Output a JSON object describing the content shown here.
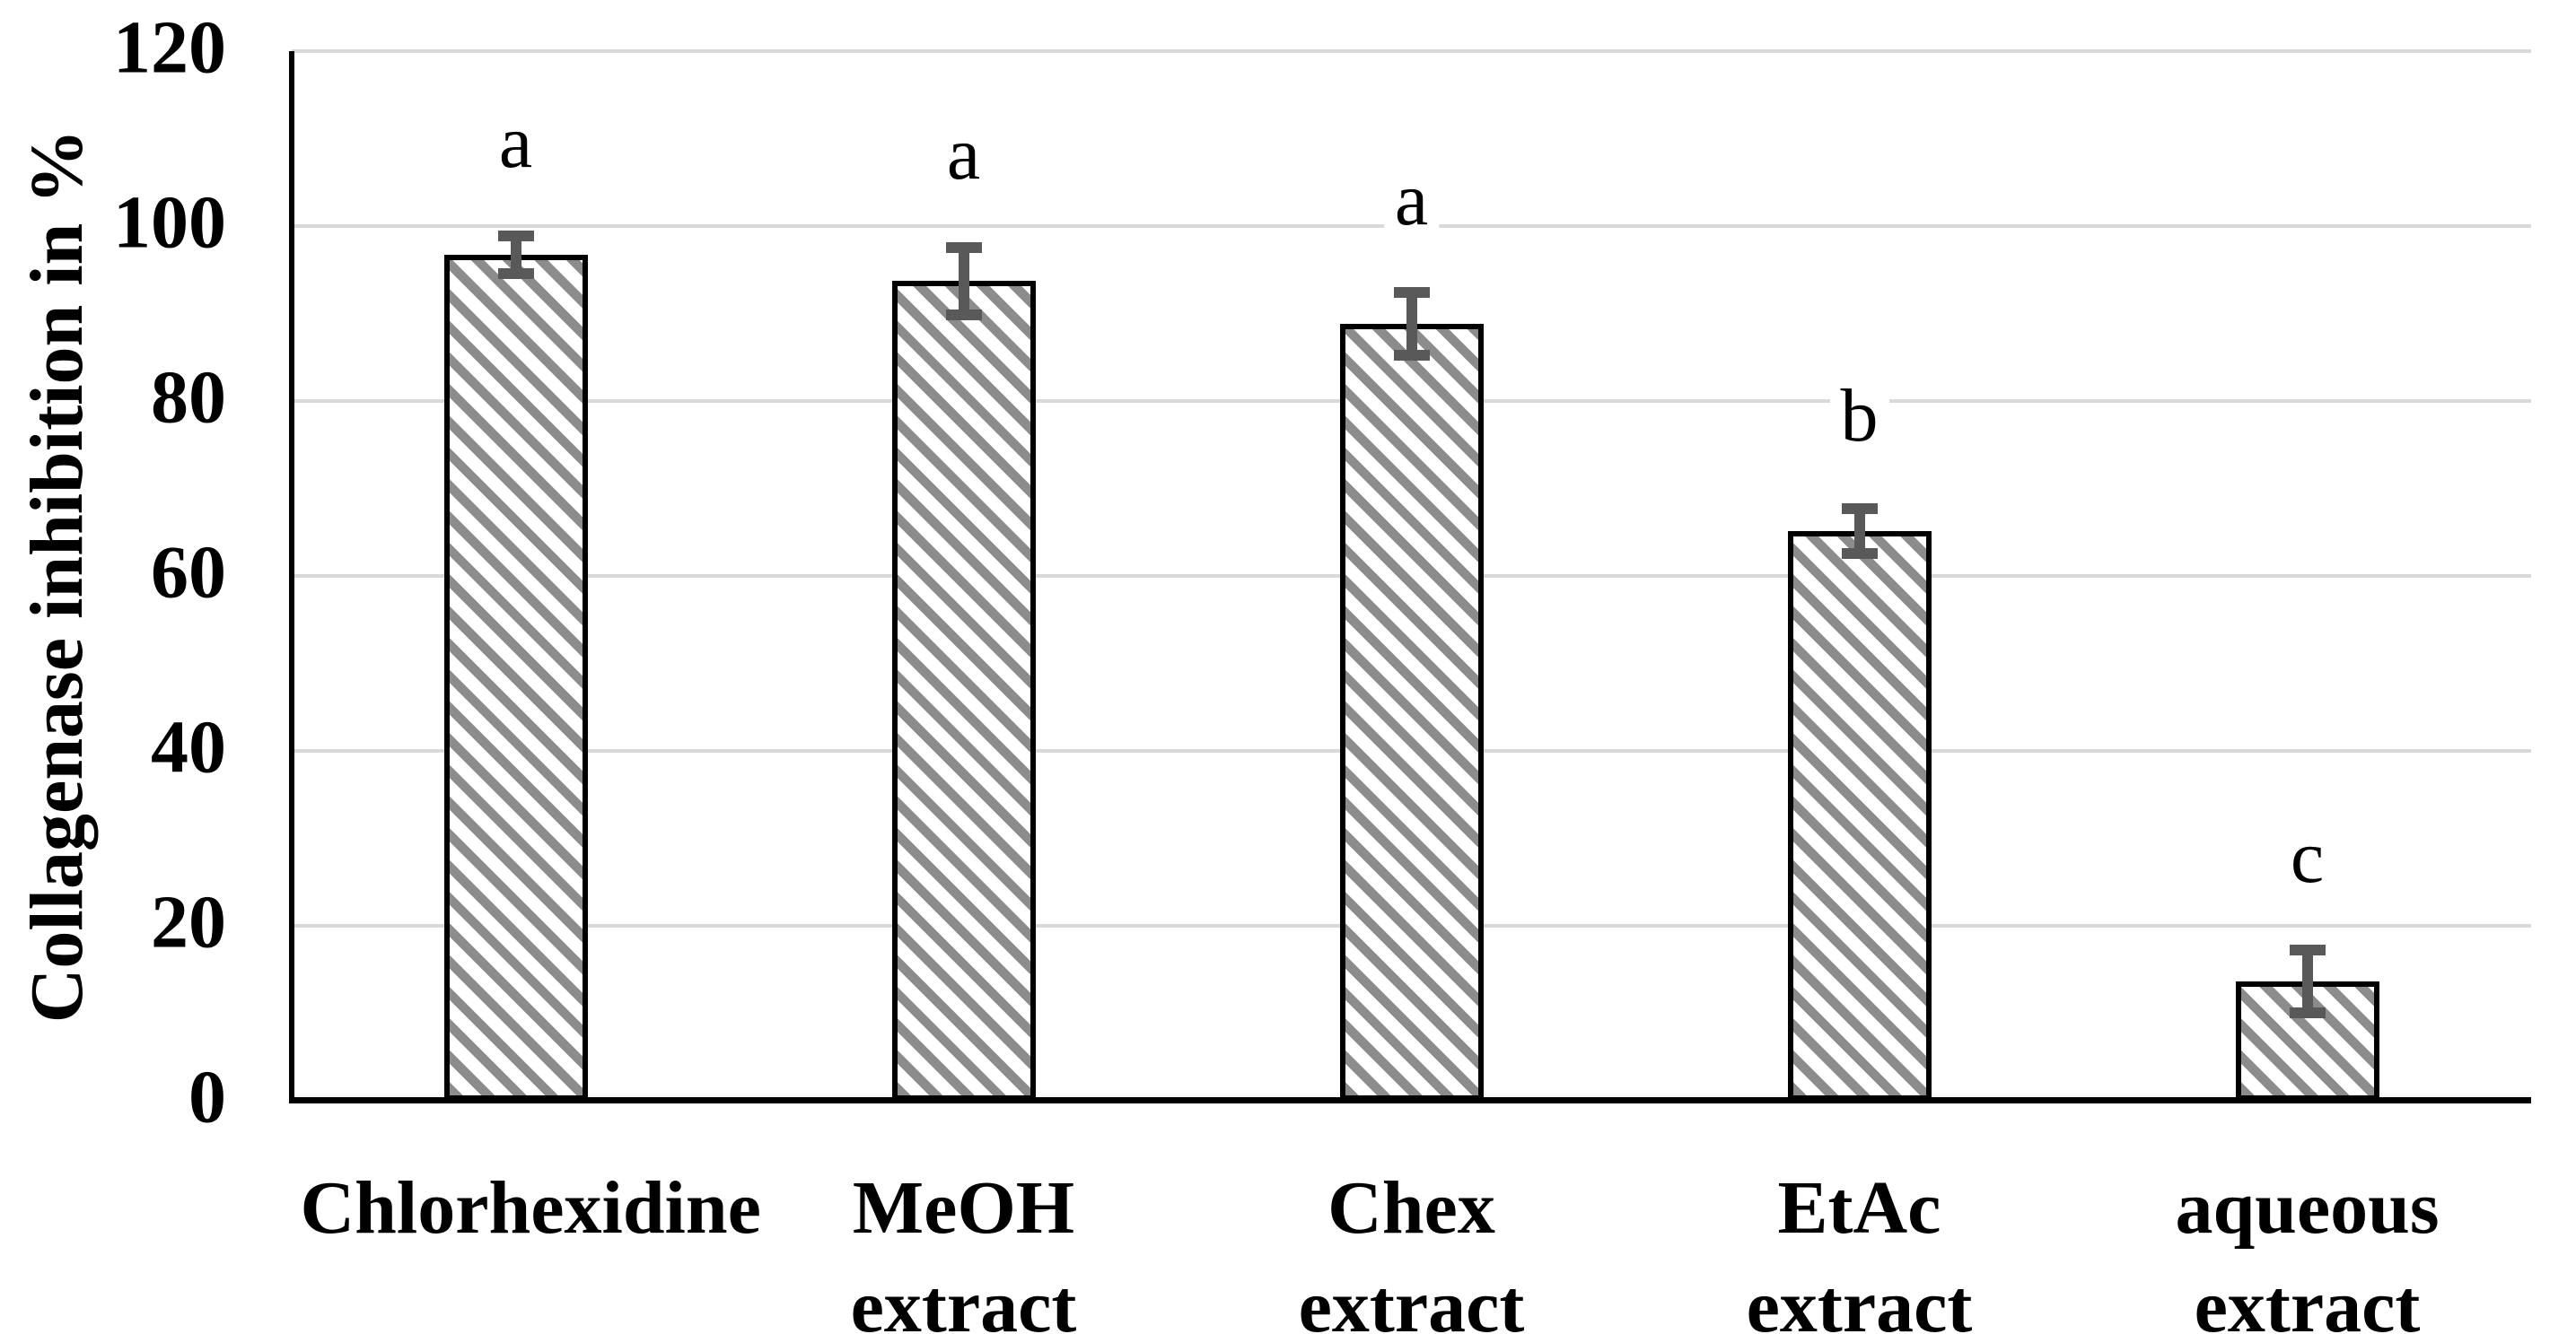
{
  "chart_data": {
    "type": "bar",
    "title": "",
    "xlabel": "",
    "ylabel": "Collagenase inhibition in %",
    "ylim": [
      0,
      120
    ],
    "yticks": [
      0,
      20,
      40,
      60,
      80,
      100,
      120
    ],
    "grid": "horizontal",
    "legend": "none",
    "categories": [
      "Chlorhexidine",
      "MeOH extract",
      "Chex extract",
      "EtAc extract",
      "aqueous extract"
    ],
    "series": [
      {
        "name": "Collagenase inhibition in %",
        "values": [
          96.7,
          93.7,
          88.8,
          65.1,
          13.6
        ],
        "error_bars": [
          2.8,
          4.5,
          4.2,
          3.2,
          4.2
        ],
        "significance_letters": [
          "a",
          "a",
          "a",
          "b",
          "c"
        ]
      }
    ],
    "style": {
      "bar_fill_pattern": "diagonal-hatch-backslash",
      "hatch_color": "#8c8c8c",
      "bar_fill_background": "#ffffff",
      "bar_outline_color": "#000000",
      "error_bar_color": "#595959",
      "gridline_color": "#d9d9d9",
      "axis_color": "#000000",
      "text_color": "#000000",
      "figure_background": "#ffffff"
    }
  }
}
